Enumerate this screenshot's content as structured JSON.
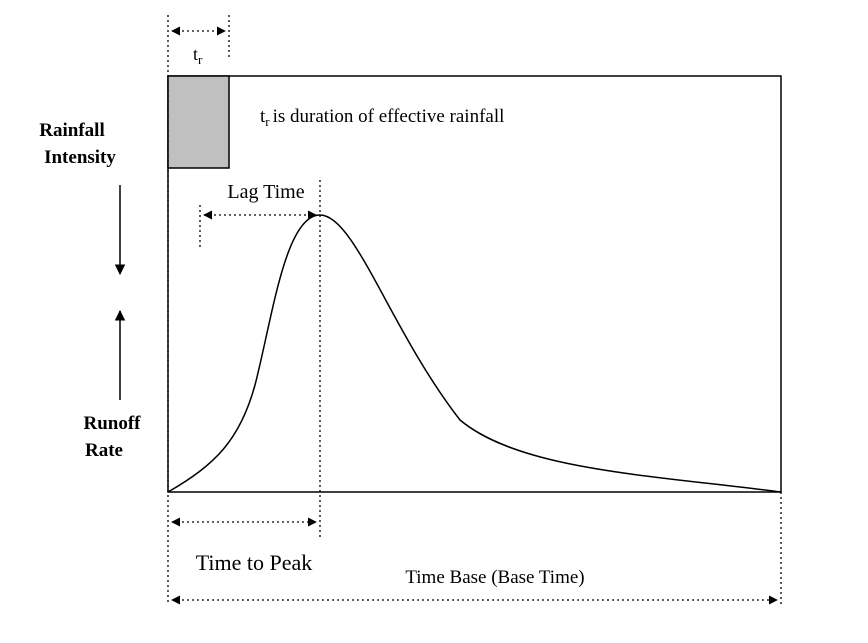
{
  "top_label": {
    "base": "t",
    "sub": "r"
  },
  "note": {
    "base": "t",
    "sub": "r",
    "text": "is duration of effective rainfall"
  },
  "left_labels": {
    "rainfall": [
      "Rainfall",
      "Intensity"
    ],
    "runoff": [
      "Runoff",
      "Rate"
    ]
  },
  "lag_time": "Lag Time",
  "time_to_peak": "Time to Peak",
  "time_base": "Time Base (Base Time)"
}
